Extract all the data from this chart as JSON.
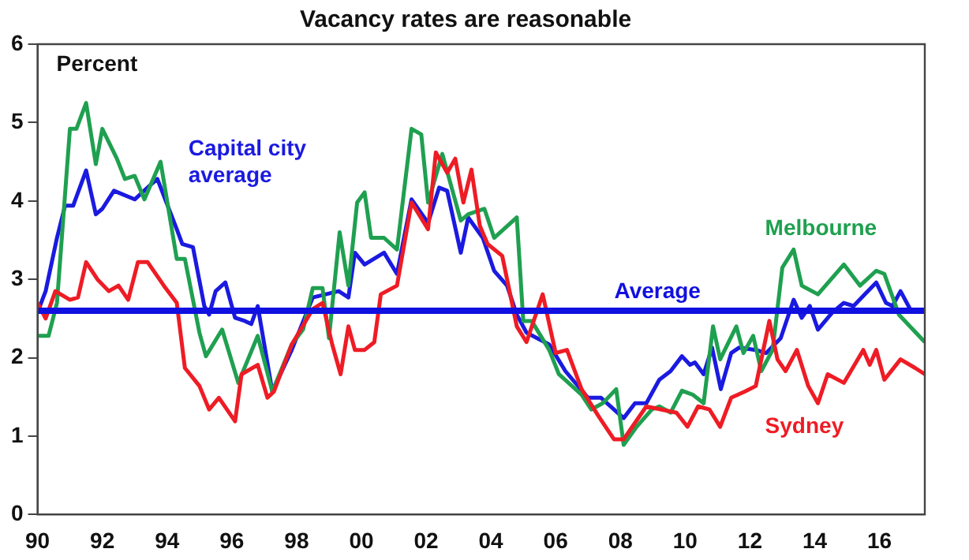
{
  "chart_data": {
    "type": "line",
    "title": "Vacancy rates are reasonable",
    "ylabel": "Percent",
    "xlim": [
      1990,
      2017.4
    ],
    "xticks": [
      {
        "value": 1990,
        "label": "90"
      },
      {
        "value": 1992,
        "label": "92"
      },
      {
        "value": 1994,
        "label": "94"
      },
      {
        "value": 1996,
        "label": "96"
      },
      {
        "value": 1998,
        "label": "98"
      },
      {
        "value": 2000,
        "label": "00"
      },
      {
        "value": 2002,
        "label": "02"
      },
      {
        "value": 2004,
        "label": "04"
      },
      {
        "value": 2006,
        "label": "06"
      },
      {
        "value": 2008,
        "label": "08"
      },
      {
        "value": 2010,
        "label": "10"
      },
      {
        "value": 2012,
        "label": "12"
      },
      {
        "value": 2014,
        "label": "14"
      },
      {
        "value": 2016,
        "label": "16"
      }
    ],
    "ylim": [
      0,
      6
    ],
    "yticks": [
      0,
      1,
      2,
      3,
      4,
      5,
      6
    ],
    "grid": false,
    "legend": false,
    "marker": "none",
    "line_style": "solid",
    "ref_lines": [
      {
        "axis": "y",
        "value": 2.6,
        "label": "Average",
        "color": "#1010e0"
      }
    ],
    "series": [
      {
        "name": "Sydney",
        "color": "#ee1c25",
        "x": [
          1990,
          1990.25,
          1990.55,
          1991,
          1991.25,
          1991.5,
          1991.85,
          1992.2,
          1992.5,
          1992.8,
          1993.1,
          1993.4,
          1993.9,
          1994.3,
          1994.55,
          1995,
          1995.3,
          1995.6,
          1996.1,
          1996.3,
          1996.8,
          1997.1,
          1997.3,
          1997.85,
          1998.5,
          1998.8,
          1999.1,
          1999.36,
          1999.6,
          1999.8,
          2000.1,
          2000.4,
          2000.6,
          2001.1,
          2001.55,
          2002.06,
          2002.3,
          2002.65,
          2002.9,
          2003.15,
          2003.4,
          2003.66,
          2003.9,
          2004.35,
          2004.8,
          2005.1,
          2005.6,
          2006,
          2006.35,
          2006.8,
          2007.3,
          2007.8,
          2008.1,
          2008.8,
          2009.73,
          2010.07,
          2010.4,
          2010.75,
          2011.08,
          2011.42,
          2011.85,
          2012.18,
          2012.6,
          2012.85,
          2013.1,
          2013.45,
          2013.8,
          2014.1,
          2014.4,
          2014.9,
          2015.5,
          2015.7,
          2015.9,
          2016.15,
          2016.65,
          2017.1,
          2017.4
        ],
        "values": [
          2.7,
          2.5,
          2.85,
          2.74,
          2.77,
          3.22,
          3.0,
          2.85,
          2.92,
          2.74,
          3.22,
          3.22,
          2.92,
          2.7,
          1.87,
          1.64,
          1.34,
          1.49,
          1.19,
          1.79,
          1.91,
          1.49,
          1.57,
          2.17,
          2.62,
          2.7,
          2.17,
          1.79,
          2.4,
          2.1,
          2.1,
          2.2,
          2.81,
          2.92,
          3.98,
          3.64,
          4.62,
          4.36,
          4.54,
          3.98,
          4.4,
          3.68,
          3.45,
          3.3,
          2.4,
          2.2,
          2.81,
          2.06,
          2.1,
          1.6,
          1.27,
          0.96,
          0.96,
          1.38,
          1.3,
          1.12,
          1.38,
          1.34,
          1.12,
          1.49,
          1.57,
          1.64,
          2.47,
          1.98,
          1.83,
          2.1,
          1.64,
          1.42,
          1.79,
          1.68,
          2.1,
          1.91,
          2.1,
          1.72,
          1.98,
          1.87,
          1.79
        ]
      },
      {
        "name": "Melbourne",
        "color": "#1fa050",
        "x": [
          1990,
          1990.34,
          1990.6,
          1991,
          1991.2,
          1991.5,
          1991.8,
          1992,
          1992.45,
          1992.7,
          1993,
          1993.3,
          1993.8,
          1994.3,
          1994.55,
          1995,
          1995.2,
          1995.7,
          1996.2,
          1996.8,
          1997.25,
          1997.85,
          1998.2,
          1998.5,
          1998.8,
          1999,
          1999.33,
          1999.6,
          1999.87,
          2000.1,
          2000.3,
          2000.7,
          2001.1,
          2001.55,
          2001.85,
          2002.06,
          2002.5,
          2003.07,
          2003.3,
          2003.8,
          2004.1,
          2004.8,
          2005,
          2005.26,
          2005.8,
          2006.1,
          2006.8,
          2007.1,
          2007.45,
          2007.87,
          2008.1,
          2008.5,
          2008.97,
          2009.2,
          2009.55,
          2009.9,
          2010.23,
          2010.57,
          2010.86,
          2011.08,
          2011.58,
          2011.8,
          2012.1,
          2012.35,
          2012.7,
          2013,
          2013.35,
          2013.6,
          2014.1,
          2014.9,
          2015.4,
          2015.9,
          2016.15,
          2016.6,
          2017.4
        ],
        "values": [
          2.28,
          2.28,
          2.7,
          4.92,
          4.92,
          5.25,
          4.47,
          4.92,
          4.54,
          4.28,
          4.32,
          4.02,
          4.5,
          3.26,
          3.26,
          2.32,
          2.02,
          2.36,
          1.68,
          2.28,
          1.57,
          2.17,
          2.36,
          2.89,
          2.89,
          2.25,
          3.6,
          2.92,
          3.98,
          4.11,
          3.53,
          3.53,
          3.38,
          4.92,
          4.85,
          3.98,
          4.6,
          3.75,
          3.83,
          3.9,
          3.53,
          3.79,
          2.47,
          2.47,
          2.1,
          1.79,
          1.53,
          1.34,
          1.42,
          1.6,
          0.89,
          1.12,
          1.34,
          1.38,
          1.3,
          1.58,
          1.53,
          1.42,
          2.4,
          1.98,
          2.4,
          2.06,
          2.28,
          1.83,
          2.1,
          3.15,
          3.38,
          2.92,
          2.81,
          3.19,
          2.92,
          3.11,
          3.07,
          2.55,
          2.2
        ]
      },
      {
        "name": "Capital city average",
        "color": "#1a1ae0",
        "x": [
          1990,
          1990.25,
          1990.6,
          1990.85,
          1991.1,
          1991.5,
          1991.8,
          1992,
          1992.36,
          1993,
          1993.45,
          1993.7,
          1994.3,
          1994.47,
          1994.8,
          1995.15,
          1995.3,
          1995.5,
          1995.8,
          1996.1,
          1996.4,
          1996.6,
          1996.8,
          1997.25,
          1997.85,
          1998.5,
          1999.3,
          1999.6,
          1999.8,
          2000.1,
          2000.7,
          2001.1,
          2001.55,
          2002.06,
          2002.4,
          2002.65,
          2003.07,
          2003.3,
          2003.75,
          2004.1,
          2004.5,
          2004.8,
          2005.1,
          2005.8,
          2006.3,
          2007,
          2007.4,
          2007.8,
          2008.1,
          2008.45,
          2008.8,
          2009.2,
          2009.55,
          2009.9,
          2010.15,
          2010.3,
          2010.57,
          2010.83,
          2011.1,
          2011.42,
          2011.67,
          2012.18,
          2012.5,
          2012.95,
          2013.35,
          2013.6,
          2013.85,
          2014.1,
          2014.55,
          2014.9,
          2015.2,
          2015.55,
          2015.9,
          2016.2,
          2016.4,
          2016.65,
          2017
        ],
        "values": [
          2.58,
          2.85,
          3.53,
          3.94,
          3.94,
          4.39,
          3.83,
          3.9,
          4.13,
          4.02,
          4.19,
          4.28,
          3.64,
          3.45,
          3.41,
          2.66,
          2.55,
          2.85,
          2.96,
          2.51,
          2.47,
          2.43,
          2.66,
          1.57,
          2.1,
          2.77,
          2.85,
          2.77,
          3.34,
          3.19,
          3.34,
          3.07,
          4.02,
          3.72,
          4.17,
          4.13,
          3.34,
          3.79,
          3.53,
          3.11,
          2.92,
          2.55,
          2.32,
          2.17,
          1.83,
          1.49,
          1.49,
          1.34,
          1.23,
          1.42,
          1.42,
          1.72,
          1.83,
          2.02,
          1.91,
          1.94,
          1.79,
          2.13,
          1.6,
          2.06,
          2.13,
          2.1,
          2.06,
          2.25,
          2.74,
          2.51,
          2.66,
          2.36,
          2.58,
          2.7,
          2.66,
          2.81,
          2.96,
          2.7,
          2.66,
          2.85,
          2.58
        ]
      }
    ]
  }
}
